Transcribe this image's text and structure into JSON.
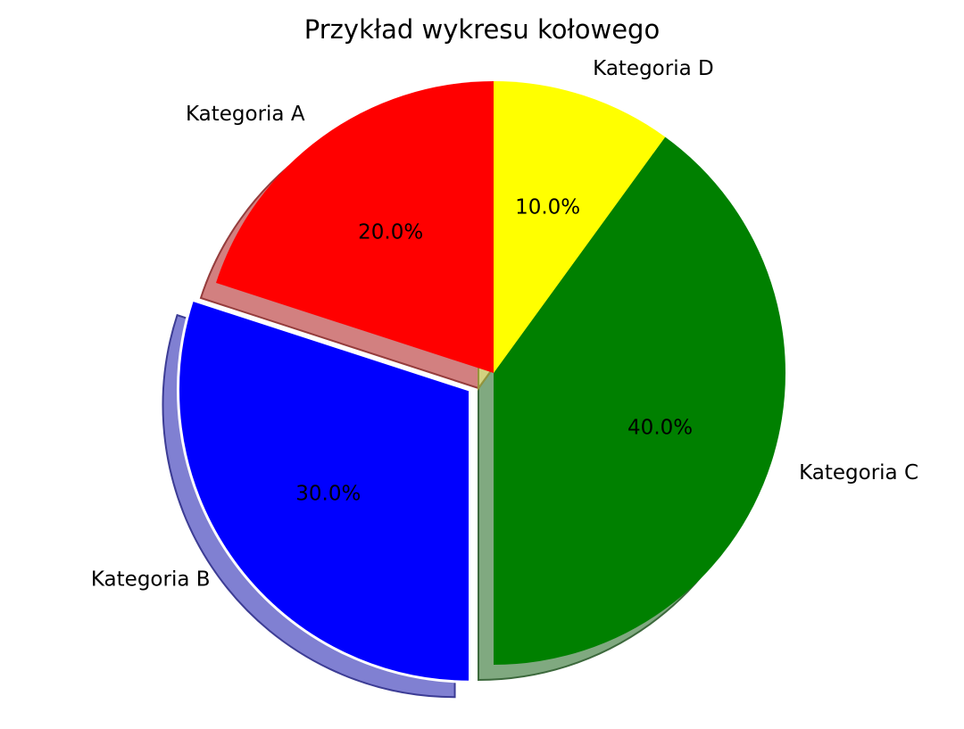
{
  "chart_data": {
    "type": "pie",
    "title": "Przykład wykresu kołowego",
    "categories": [
      "Kategoria A",
      "Kategoria B",
      "Kategoria C",
      "Kategoria D"
    ],
    "values": [
      20,
      30,
      40,
      10
    ],
    "percent_labels": [
      "20.0%",
      "30.0%",
      "40.0%",
      "10.0%"
    ],
    "colors": [
      "#ff0000",
      "#0000ff",
      "#008000",
      "#ffff00"
    ],
    "explode": [
      0,
      0.1,
      0,
      0
    ],
    "start_angle": 90,
    "direction": "counterclockwise",
    "shadow": true
  }
}
